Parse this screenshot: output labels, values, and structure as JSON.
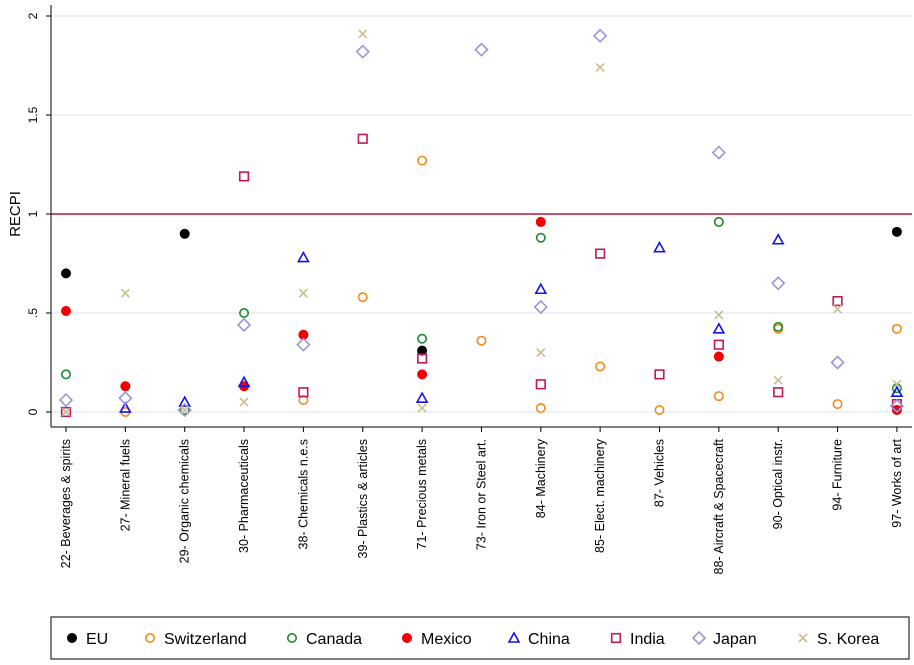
{
  "chart_data": {
    "type": "scatter",
    "title": "",
    "xlabel": "",
    "ylabel": "RECPI",
    "ylim": [
      0,
      2
    ],
    "yticks": [
      {
        "value": 0,
        "label": "0"
      },
      {
        "value": 0.5,
        "label": ".5"
      },
      {
        "value": 1,
        "label": "1"
      },
      {
        "value": 1.5,
        "label": "1.5"
      },
      {
        "value": 2,
        "label": "2"
      }
    ],
    "grid": true,
    "reference_line": {
      "y": 1,
      "color": "#b5163a"
    },
    "legend_position": "bottom",
    "categories": [
      "22- Beverages & spirits",
      "27- Mineral fuels",
      "29- Organic chemicals",
      "30- Pharmaceuticals",
      "38- Chemicals n.e.s",
      "39- Plastics & articles",
      "71- Precious metals",
      "73- Iron or Steel art.",
      "84- Machinery",
      "85- Elect. machinery",
      "87- Vehicles",
      "88- Aircraft & Spacecraft",
      "90- Optical instr.",
      "94- Furniture",
      "97- Works of art"
    ],
    "series": [
      {
        "name": "EU",
        "marker": "filled-circle",
        "color": "#000000",
        "values": [
          0.7,
          null,
          0.9,
          null,
          null,
          null,
          0.31,
          null,
          null,
          null,
          null,
          null,
          null,
          null,
          0.91
        ]
      },
      {
        "name": "Switzerland",
        "marker": "hollow-circle",
        "color": "#f28a1e",
        "values": [
          null,
          0.0,
          0.01,
          null,
          0.06,
          0.58,
          1.27,
          0.36,
          0.02,
          0.23,
          0.01,
          0.08,
          0.42,
          0.04,
          0.42
        ]
      },
      {
        "name": "Canada",
        "marker": "hollow-circle",
        "color": "#1f8a2c",
        "values": [
          0.19,
          null,
          0.01,
          0.5,
          null,
          null,
          0.37,
          null,
          0.88,
          null,
          null,
          0.96,
          0.43,
          null,
          0.12
        ]
      },
      {
        "name": "Mexico",
        "marker": "filled-circle",
        "color": "#f00000",
        "values": [
          0.51,
          0.13,
          null,
          0.13,
          0.39,
          null,
          0.19,
          null,
          0.96,
          null,
          null,
          0.28,
          null,
          null,
          0.01
        ]
      },
      {
        "name": "China",
        "marker": "hollow-triangle",
        "color": "#1414e6",
        "values": [
          null,
          0.02,
          0.05,
          0.15,
          0.78,
          null,
          0.07,
          null,
          0.62,
          null,
          0.83,
          0.42,
          0.87,
          null,
          0.1
        ]
      },
      {
        "name": "India",
        "marker": "hollow-square",
        "color": "#c2185b",
        "values": [
          0.0,
          null,
          null,
          1.19,
          0.1,
          1.38,
          0.27,
          null,
          0.14,
          0.8,
          0.19,
          0.34,
          0.1,
          0.56,
          0.04
        ]
      },
      {
        "name": "Japan",
        "marker": "hollow-diamond",
        "color": "#9b96d8",
        "values": [
          0.06,
          0.07,
          0.01,
          0.44,
          0.34,
          1.82,
          null,
          1.83,
          0.53,
          1.9,
          null,
          1.31,
          0.65,
          0.25,
          0.03
        ]
      },
      {
        "name": "S. Korea",
        "marker": "cross",
        "color": "#c9bd8e",
        "values": [
          0.0,
          0.6,
          0.01,
          0.05,
          0.6,
          1.91,
          0.02,
          null,
          0.3,
          1.74,
          null,
          0.49,
          0.16,
          0.52,
          0.14
        ]
      }
    ]
  }
}
